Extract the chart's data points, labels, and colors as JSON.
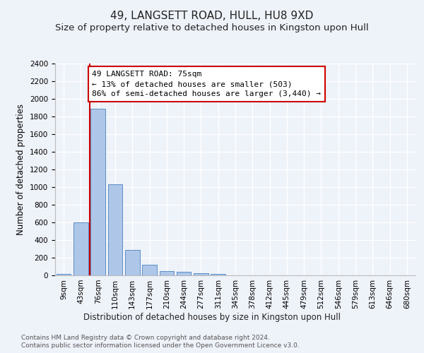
{
  "title": "49, LANGSETT ROAD, HULL, HU8 9XD",
  "subtitle": "Size of property relative to detached houses in Kingston upon Hull",
  "xlabel": "Distribution of detached houses by size in Kingston upon Hull",
  "ylabel": "Number of detached properties",
  "footnote1": "Contains HM Land Registry data © Crown copyright and database right 2024.",
  "footnote2": "Contains public sector information licensed under the Open Government Licence v3.0.",
  "bar_labels": [
    "9sqm",
    "43sqm",
    "76sqm",
    "110sqm",
    "143sqm",
    "177sqm",
    "210sqm",
    "244sqm",
    "277sqm",
    "311sqm",
    "345sqm",
    "378sqm",
    "412sqm",
    "445sqm",
    "479sqm",
    "512sqm",
    "546sqm",
    "579sqm",
    "613sqm",
    "646sqm",
    "680sqm"
  ],
  "bar_values": [
    20,
    600,
    1890,
    1030,
    290,
    120,
    50,
    40,
    28,
    20,
    0,
    0,
    0,
    0,
    0,
    0,
    0,
    0,
    0,
    0,
    0
  ],
  "bar_color": "#aec6e8",
  "bar_edge_color": "#5b8fc7",
  "annotation_text": "49 LANGSETT ROAD: 75sqm\n← 13% of detached houses are smaller (503)\n86% of semi-detached houses are larger (3,440) →",
  "annotation_box_color": "#ffffff",
  "annotation_box_edge_color": "#cc0000",
  "vline_color": "#cc0000",
  "vline_x_index": 2,
  "ylim": [
    0,
    2400
  ],
  "yticks": [
    0,
    200,
    400,
    600,
    800,
    1000,
    1200,
    1400,
    1600,
    1800,
    2000,
    2200,
    2400
  ],
  "background_color": "#eef2f9",
  "grid_color": "#ffffff",
  "title_fontsize": 11,
  "subtitle_fontsize": 9.5,
  "axis_label_fontsize": 8.5,
  "tick_fontsize": 7.5,
  "annotation_fontsize": 8,
  "footnote_fontsize": 6.5
}
